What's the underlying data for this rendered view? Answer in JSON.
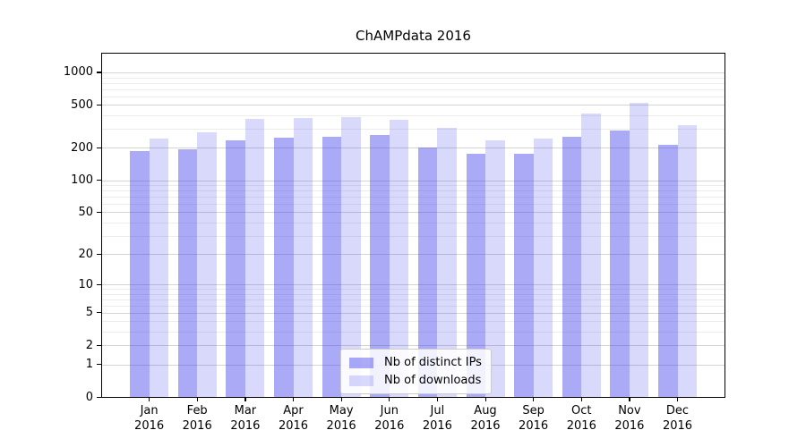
{
  "chart_data": {
    "type": "bar",
    "title": "ChAMPdata 2016",
    "categories": [
      "Jan",
      "Feb",
      "Mar",
      "Apr",
      "May",
      "Jun",
      "Jul",
      "Aug",
      "Sep",
      "Oct",
      "Nov",
      "Dec"
    ],
    "year_label": "2016",
    "series": [
      {
        "name": "Nb of distinct IPs",
        "color": "#4444EE74",
        "values": [
          185,
          193,
          234,
          248,
          253,
          263,
          202,
          177,
          177,
          255,
          291,
          215
        ]
      },
      {
        "name": "Nb of downloads",
        "color": "#4444EE34",
        "values": [
          245,
          278,
          373,
          380,
          385,
          362,
          305,
          236,
          244,
          415,
          520,
          323
        ]
      }
    ],
    "xlabel": "",
    "ylabel": "",
    "yscale": "log10(value+1)",
    "ylim": [
      0,
      1470
    ],
    "yticks_major": [
      0,
      1,
      2,
      5,
      10,
      20,
      50,
      100,
      200,
      500,
      1000
    ],
    "yticks_minor": [
      3,
      4,
      6,
      7,
      8,
      9,
      30,
      40,
      60,
      70,
      80,
      90,
      300,
      400,
      600,
      700,
      800,
      900
    ],
    "grid": true,
    "legend": {
      "position": "lower center"
    },
    "colors": {
      "major_grid": "#d4d4d4",
      "minor_grid": "#ececec",
      "spine": "#000000",
      "background": "#ffffff"
    }
  }
}
